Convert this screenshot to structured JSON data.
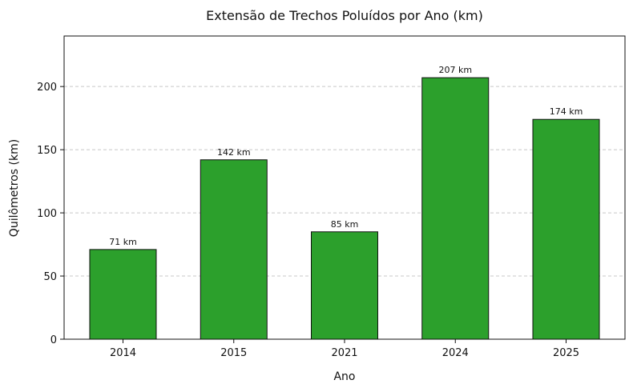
{
  "chart_data": {
    "type": "bar",
    "title": "Extensão de Trechos Poluídos por Ano (km)",
    "xlabel": "Ano",
    "ylabel": "Quilômetros (km)",
    "categories": [
      "2014",
      "2015",
      "2021",
      "2024",
      "2025"
    ],
    "values": [
      71,
      142,
      85,
      207,
      174
    ],
    "data_labels": [
      "71 km",
      "142 km",
      "85 km",
      "207 km",
      "174 km"
    ],
    "ylim": [
      0,
      240
    ],
    "yticks": [
      0,
      50,
      100,
      150,
      200
    ],
    "grid": "horizontal dashed",
    "bar_color": "#2ca02c",
    "bar_edge_color": "#111111"
  }
}
